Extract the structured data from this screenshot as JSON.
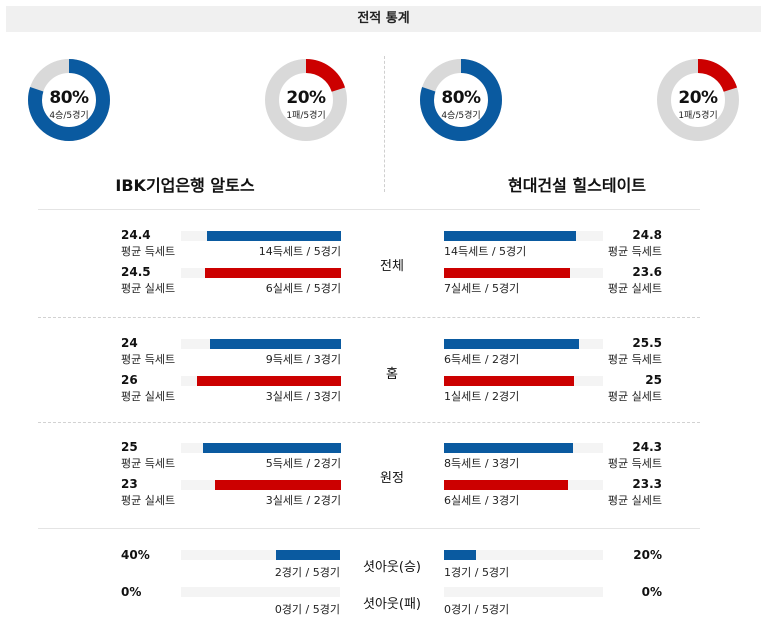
{
  "header": {
    "title": "전적 통계"
  },
  "colors": {
    "home": "#0a5aa0",
    "away": "#cc0000",
    "track": "#d9d9d9"
  },
  "left_team": {
    "name": "IBK기업은행 알토스",
    "win_donut": {
      "pct": "80%",
      "sub": "4승/5경기",
      "fraction": 0.8
    },
    "loss_donut": {
      "pct": "20%",
      "sub": "1패/5경기",
      "fraction": 0.2
    }
  },
  "right_team": {
    "name": "현대건설 힐스테이트",
    "win_donut": {
      "pct": "80%",
      "sub": "4승/5경기",
      "fraction": 0.8
    },
    "loss_donut": {
      "pct": "20%",
      "sub": "1패/5경기",
      "fraction": 0.2
    }
  },
  "sections": [
    {
      "label": "전체",
      "left": [
        {
          "value": "24.4",
          "label": "평균 득세트",
          "detail": "14득세트 / 5경기",
          "fraction": 0.84
        },
        {
          "value": "24.5",
          "label": "평균 실세트",
          "detail": "6실세트 / 5경기",
          "fraction": 0.85
        }
      ],
      "right": [
        {
          "value": "24.8",
          "label": "평균 득세트",
          "detail": "14득세트 / 5경기",
          "fraction": 0.83
        },
        {
          "value": "23.6",
          "label": "평균 실세트",
          "detail": "7실세트 / 5경기",
          "fraction": 0.79
        }
      ]
    },
    {
      "label": "홈",
      "left": [
        {
          "value": "24",
          "label": "평균 득세트",
          "detail": "9득세트 / 3경기",
          "fraction": 0.82
        },
        {
          "value": "26",
          "label": "평균 실세트",
          "detail": "3실세트 / 3경기",
          "fraction": 0.9
        }
      ],
      "right": [
        {
          "value": "25.5",
          "label": "평균 득세트",
          "detail": "6득세트 / 2경기",
          "fraction": 0.85
        },
        {
          "value": "25",
          "label": "평균 실세트",
          "detail": "1실세트 / 2경기",
          "fraction": 0.82
        }
      ]
    },
    {
      "label": "원정",
      "left": [
        {
          "value": "25",
          "label": "평균 득세트",
          "detail": "5득세트 / 2경기",
          "fraction": 0.86
        },
        {
          "value": "23",
          "label": "평균 실세트",
          "detail": "3실세트 / 2경기",
          "fraction": 0.79
        }
      ],
      "right": [
        {
          "value": "24.3",
          "label": "평균 득세트",
          "detail": "8득세트 / 3경기",
          "fraction": 0.81
        },
        {
          "value": "23.3",
          "label": "평균 실세트",
          "detail": "6실세트 / 3경기",
          "fraction": 0.78
        }
      ]
    }
  ],
  "shutouts": [
    {
      "label": "셧아웃(승)",
      "left": {
        "value": "40%",
        "detail": "2경기 / 5경기",
        "fraction": 0.4
      },
      "right": {
        "value": "20%",
        "detail": "1경기 / 5경기",
        "fraction": 0.2
      }
    },
    {
      "label": "셧아웃(패)",
      "left": {
        "value": "0%",
        "detail": "0경기 / 5경기",
        "fraction": 0
      },
      "right": {
        "value": "0%",
        "detail": "0경기 / 5경기",
        "fraction": 0
      }
    }
  ]
}
